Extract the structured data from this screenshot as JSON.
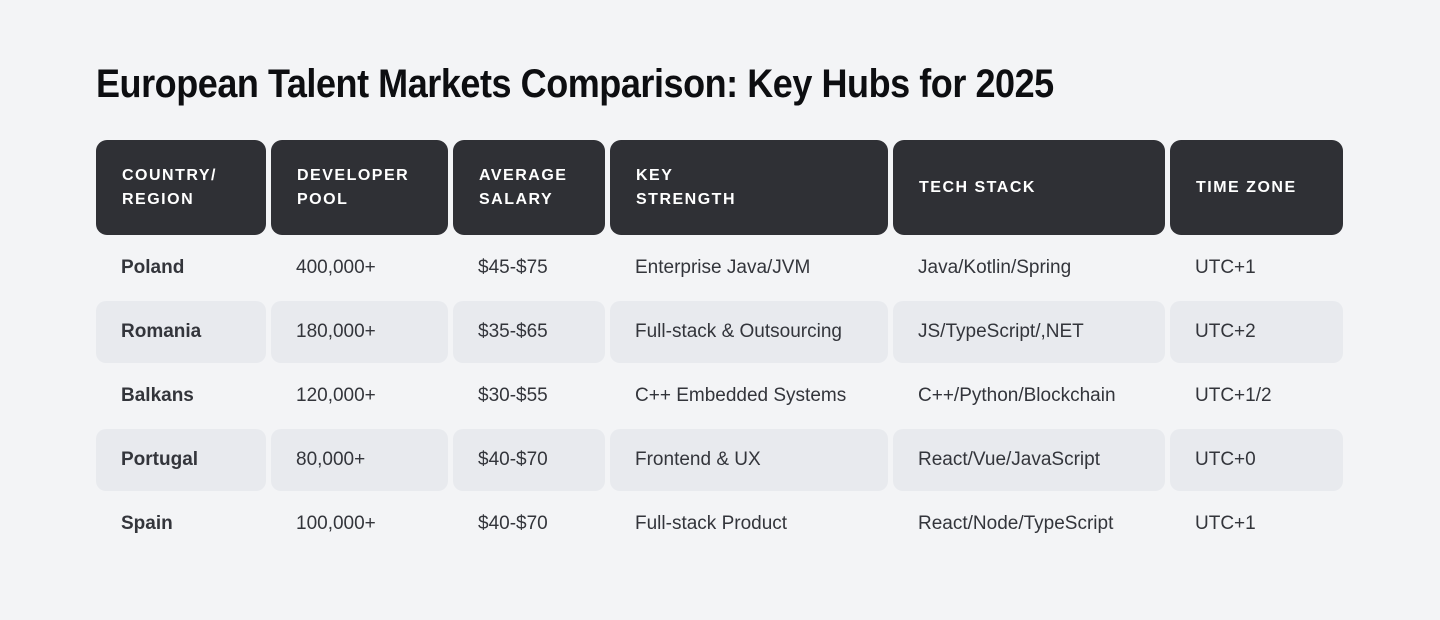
{
  "page": {
    "title": "European Talent Markets Comparison: Key Hubs for 2025"
  },
  "colors": {
    "background": "#f3f4f6",
    "header_bg": "#2f3035",
    "stripe_bg": "#e8eaee",
    "header_text": "#ffffff",
    "body_text": "#33353b",
    "title_text": "#0d0e11"
  },
  "table": {
    "columns": [
      "COUNTRY/\nREGION",
      "DEVELOPER\nPOOL",
      "AVERAGE\nSALARY",
      "KEY\nSTRENGTH",
      "TECH STACK",
      "TIME ZONE"
    ],
    "rows": [
      {
        "country": "Poland",
        "developer_pool": "400,000+",
        "average_salary": "$45-$75",
        "key_strength": "Enterprise Java/JVM",
        "tech_stack": "Java/Kotlin/Spring",
        "time_zone": "UTC+1"
      },
      {
        "country": "Romania",
        "developer_pool": "180,000+",
        "average_salary": "$35-$65",
        "key_strength": "Full-stack & Outsourcing",
        "tech_stack": "JS/TypeScript/,NET",
        "time_zone": "UTC+2"
      },
      {
        "country": "Balkans",
        "developer_pool": "120,000+",
        "average_salary": "$30-$55",
        "key_strength": "C++ Embedded Systems",
        "tech_stack": "C++/Python/Blockchain",
        "time_zone": "UTC+1/2"
      },
      {
        "country": "Portugal",
        "developer_pool": "80,000+",
        "average_salary": "$40-$70",
        "key_strength": "Frontend & UX",
        "tech_stack": "React/Vue/JavaScript",
        "time_zone": "UTC+0"
      },
      {
        "country": "Spain",
        "developer_pool": "100,000+",
        "average_salary": "$40-$70",
        "key_strength": "Full-stack Product",
        "tech_stack": "React/Node/TypeScript",
        "time_zone": "UTC+1"
      }
    ]
  }
}
